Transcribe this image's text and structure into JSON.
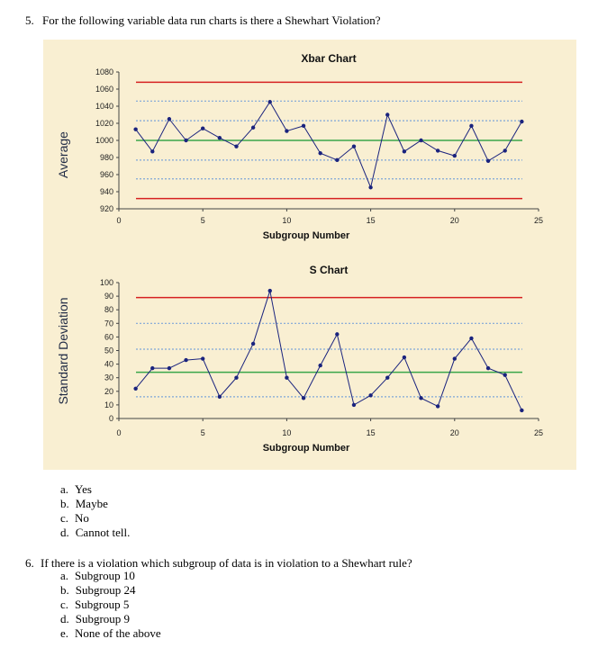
{
  "q5": {
    "number": "5.",
    "text": "For the following variable data run charts is there a Shewhart Violation?",
    "options": [
      {
        "letter": "a.",
        "text": "Yes"
      },
      {
        "letter": "b.",
        "text": "Maybe"
      },
      {
        "letter": "c.",
        "text": "No"
      },
      {
        "letter": "d.",
        "text": "Cannot tell."
      }
    ]
  },
  "q6": {
    "number": "6.",
    "text": "If there is a violation which subgroup of data is in violation to a Shewhart rule?",
    "options": [
      {
        "letter": "a.",
        "text": "Subgroup 10"
      },
      {
        "letter": "b.",
        "text": "Subgroup 24"
      },
      {
        "letter": "c.",
        "text": "Subgroup 5"
      },
      {
        "letter": "d.",
        "text": "Subgroup 9"
      },
      {
        "letter": "e.",
        "text": "None of the above"
      }
    ]
  },
  "colors": {
    "ucl": "#d62020",
    "center": "#3aa64a",
    "zone": "#7ea6d8",
    "series": "#1a237e",
    "panel_bg": "#f9efd2"
  },
  "chart_data": [
    {
      "type": "line",
      "title": "Xbar Chart",
      "xlabel": "Subgroup Number",
      "ylabel": "Average",
      "xlim": [
        0,
        25
      ],
      "ylim": [
        920,
        1080
      ],
      "xticks": [
        0,
        5,
        10,
        15,
        20,
        25
      ],
      "yticks": [
        920,
        940,
        960,
        980,
        1000,
        1020,
        1040,
        1060,
        1080
      ],
      "x": [
        1,
        2,
        3,
        4,
        5,
        6,
        7,
        8,
        9,
        10,
        11,
        12,
        13,
        14,
        15,
        16,
        17,
        18,
        19,
        20,
        21,
        22,
        23,
        24
      ],
      "values": [
        1013,
        987,
        1025,
        1000,
        1014,
        1003,
        993,
        1015,
        1045,
        1011,
        1017,
        985,
        977,
        993,
        945,
        1030,
        987,
        1000,
        988,
        982,
        1017,
        976,
        988,
        1022
      ],
      "control_lines": {
        "ucl": 1068,
        "lcl": 932,
        "center": 1000
      },
      "zone_lines": [
        1046,
        1023,
        977,
        955
      ]
    },
    {
      "type": "line",
      "title": "S Chart",
      "xlabel": "Subgroup Number",
      "ylabel": "Standard Deviation",
      "xlim": [
        0,
        25
      ],
      "ylim": [
        0,
        100
      ],
      "xticks": [
        0,
        5,
        10,
        15,
        20,
        25
      ],
      "yticks": [
        0,
        10,
        20,
        30,
        40,
        50,
        60,
        70,
        80,
        90,
        100
      ],
      "x": [
        1,
        2,
        3,
        4,
        5,
        6,
        7,
        8,
        9,
        10,
        11,
        12,
        13,
        14,
        15,
        16,
        17,
        18,
        19,
        20,
        21,
        22,
        23,
        24
      ],
      "values": [
        22,
        37,
        37,
        43,
        44,
        16,
        30,
        55,
        94,
        30,
        15,
        39,
        62,
        10,
        17,
        30,
        45,
        15,
        9,
        44,
        59,
        37,
        32,
        6
      ],
      "control_lines": {
        "ucl": 89,
        "center": 34
      },
      "zone_lines": [
        70,
        51,
        16
      ]
    }
  ]
}
